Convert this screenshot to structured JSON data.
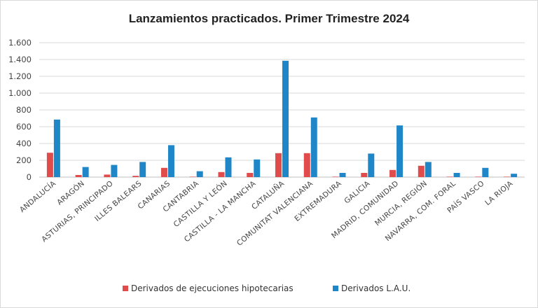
{
  "chart_data": {
    "type": "bar",
    "title": "Lanzamientos practicados. Primer Trimestre 2024",
    "xlabel": "",
    "ylabel": "",
    "ylim": [
      0,
      1600
    ],
    "yticks": [
      0,
      200,
      400,
      600,
      800,
      1000,
      1200,
      1400,
      1600
    ],
    "ytick_labels": [
      "0",
      "200",
      "400",
      "600",
      "800",
      "1.000",
      "1.200",
      "1.400",
      "1.600"
    ],
    "grid": true,
    "legend_position": "bottom",
    "categories": [
      "ANDALUCÍA",
      "ARAGÓN",
      "ASTURIAS, PRINCIPADO",
      "ILLES BALEARS",
      "CANARIAS",
      "CANTABRIA",
      "CASTILLA Y LEÓN",
      "CASTILLA - LA MANCHA",
      "CATALUÑA",
      "COMUNITAT VALENCIANA",
      "EXTREMADURA",
      "GALICIA",
      "MADRID, COMUNIDAD",
      "MURCIA, REGIÓN",
      "NAVARRA, COM. FORAL",
      "PAÍS VASCO",
      "LA RIOJA"
    ],
    "series": [
      {
        "name": "Derivados de ejecuciones hipotecarias",
        "color": "#e04b4b",
        "values": [
          290,
          25,
          30,
          15,
          110,
          5,
          60,
          50,
          285,
          285,
          5,
          50,
          85,
          135,
          5,
          5,
          5
        ]
      },
      {
        "name": "Derivados L.A.U.",
        "color": "#1f86c8",
        "values": [
          685,
          120,
          145,
          180,
          380,
          70,
          235,
          210,
          1385,
          710,
          50,
          280,
          615,
          180,
          50,
          110,
          40
        ]
      }
    ]
  }
}
